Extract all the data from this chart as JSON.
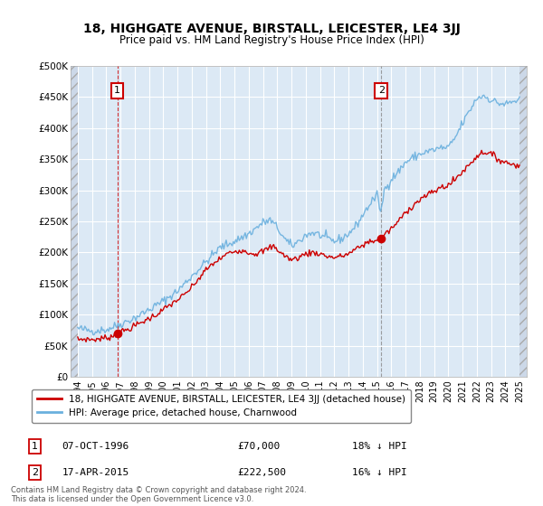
{
  "title": "18, HIGHGATE AVENUE, BIRSTALL, LEICESTER, LE4 3JJ",
  "subtitle": "Price paid vs. HM Land Registry's House Price Index (HPI)",
  "legend_line1": "18, HIGHGATE AVENUE, BIRSTALL, LEICESTER, LE4 3JJ (detached house)",
  "legend_line2": "HPI: Average price, detached house, Charnwood",
  "annotation1_label": "1",
  "annotation1_date": "07-OCT-1996",
  "annotation1_price": "£70,000",
  "annotation1_hpi": "18% ↓ HPI",
  "annotation1_year": 1996.77,
  "annotation1_value": 70000,
  "annotation2_label": "2",
  "annotation2_date": "17-APR-2015",
  "annotation2_price": "£222,500",
  "annotation2_hpi": "16% ↓ HPI",
  "annotation2_year": 2015.29,
  "annotation2_value": 222500,
  "hpi_color": "#6ab0de",
  "sale_color": "#cc0000",
  "vline1_color": "#cc0000",
  "vline1_style": "--",
  "vline2_color": "#888888",
  "vline2_style": "--",
  "box_color": "#cc0000",
  "ylim": [
    0,
    500000
  ],
  "xlim_start": 1993.5,
  "xlim_end": 2025.5,
  "yticks": [
    0,
    50000,
    100000,
    150000,
    200000,
    250000,
    300000,
    350000,
    400000,
    450000,
    500000
  ],
  "ytick_labels": [
    "£0",
    "£50K",
    "£100K",
    "£150K",
    "£200K",
    "£250K",
    "£300K",
    "£350K",
    "£400K",
    "£450K",
    "£500K"
  ],
  "xticks": [
    1994,
    1995,
    1996,
    1997,
    1998,
    1999,
    2000,
    2001,
    2002,
    2003,
    2004,
    2005,
    2006,
    2007,
    2008,
    2009,
    2010,
    2011,
    2012,
    2013,
    2014,
    2015,
    2016,
    2017,
    2018,
    2019,
    2020,
    2021,
    2022,
    2023,
    2024,
    2025
  ],
  "bg_plot_color": "#dce9f5",
  "grid_color": "#ffffff",
  "hatch_facecolor": "#ccd8e8",
  "footer_text": "Contains HM Land Registry data © Crown copyright and database right 2024.\nThis data is licensed under the Open Government Licence v3.0."
}
